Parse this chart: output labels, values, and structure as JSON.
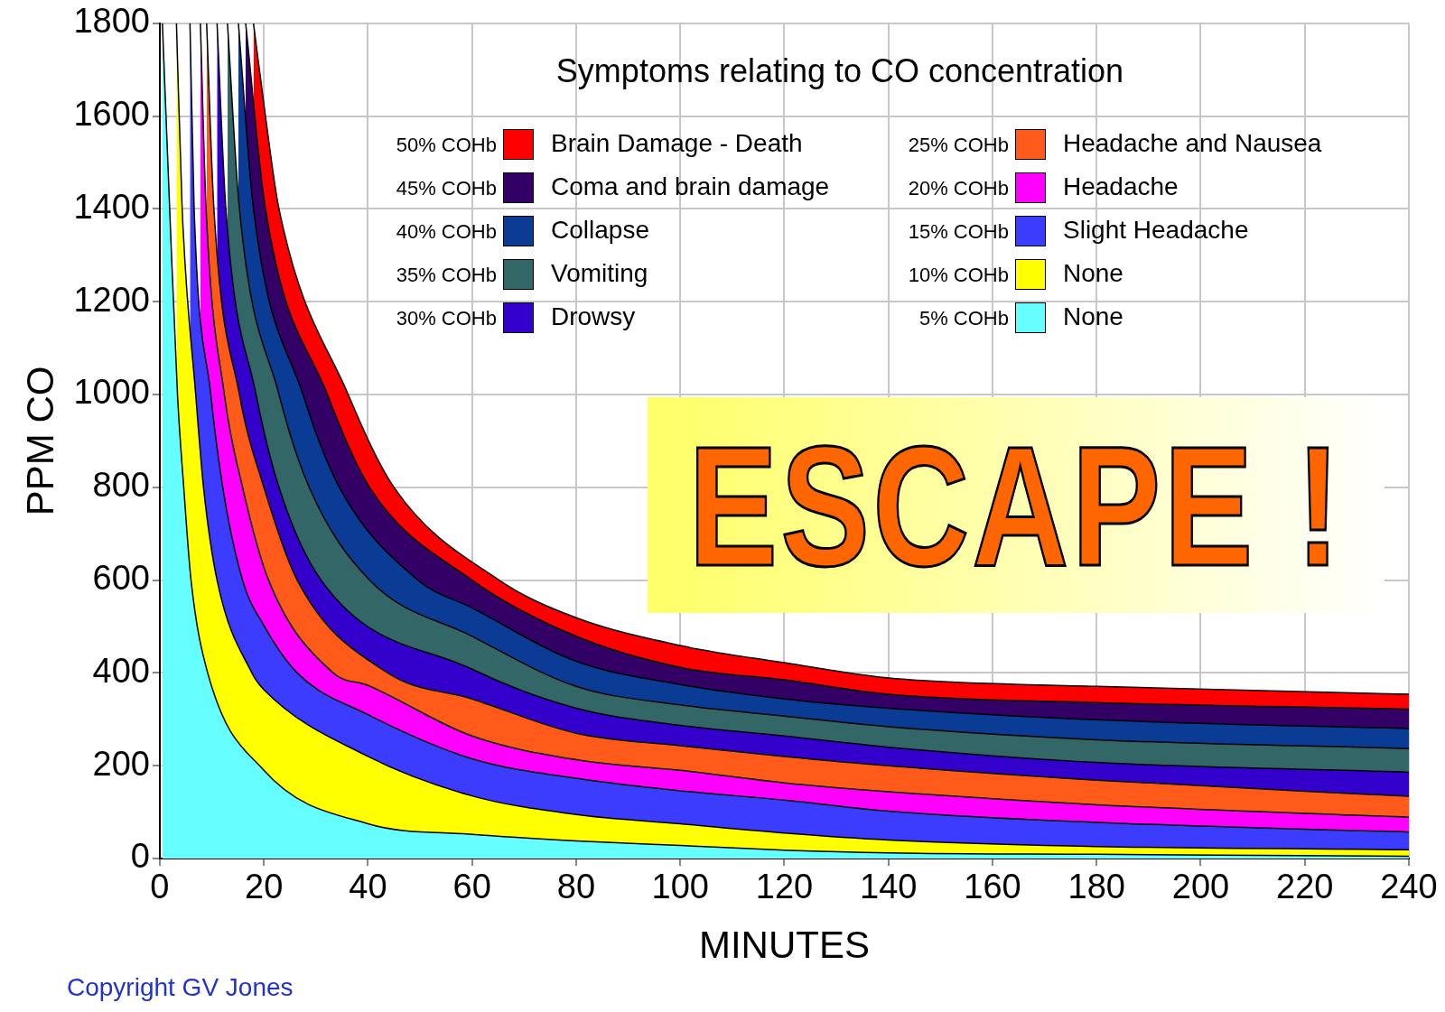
{
  "chart_data": {
    "type": "area",
    "title": "Symptoms relating to CO concentration",
    "xlabel": "MINUTES",
    "ylabel": "PPM CO",
    "xlim": [
      0,
      240
    ],
    "xticks": [
      0,
      20,
      40,
      60,
      80,
      100,
      120,
      140,
      160,
      180,
      200,
      220,
      240
    ],
    "ylim": [
      0,
      1800
    ],
    "yticks": [
      0,
      200,
      400,
      600,
      800,
      1000,
      1200,
      1400,
      1600,
      1800
    ],
    "grid": true,
    "legend": "top",
    "annotations": [
      "50% COHb",
      "45% COHb",
      "40% COHb",
      "35% COHb",
      "30% COHb",
      "25% COHb",
      "20% COHb",
      "15% COHb",
      "10% COHb",
      "5% COHb",
      "ESCAPE !",
      "Copyright GV Jones"
    ],
    "series": [
      {
        "name": "None",
        "color": "#66ffff",
        "x": [
          0.5,
          1.9,
          3.4,
          4.6,
          6.0,
          9.2,
          20,
          40,
          60,
          80,
          100,
          120,
          140,
          180,
          240
        ],
        "values": [
          1800,
          1400,
          1000,
          800,
          600,
          400,
          190,
          75,
          52,
          38,
          28,
          18,
          12,
          9,
          5
        ]
      },
      {
        "name": "None",
        "color": "#ffff00",
        "x": [
          3.2,
          4.3,
          6.9,
          8.4,
          11.0,
          17.7,
          20,
          40,
          60,
          80,
          100,
          120,
          140,
          180,
          240
        ],
        "values": [
          1800,
          1400,
          1000,
          800,
          600,
          400,
          364,
          220,
          135,
          95,
          75,
          55,
          40,
          26,
          19
        ]
      },
      {
        "name": "Slight Headache",
        "color": "#3c3cff",
        "x": [
          5.8,
          6.6,
          9.8,
          12.1,
          15.9,
          20,
          26.4,
          40,
          60,
          80,
          100,
          120,
          140,
          180,
          240
        ],
        "values": [
          1800,
          1400,
          1000,
          800,
          600,
          502,
          400,
          310,
          215,
          173,
          146,
          126,
          102,
          78,
          57
        ]
      },
      {
        "name": "Headache",
        "color": "#ff00ff",
        "x": [
          7.8,
          8.9,
          12.4,
          15.9,
          20.9,
          33.3,
          40,
          60,
          80,
          100,
          120,
          140,
          180,
          240
        ],
        "values": [
          1800,
          1400,
          1000,
          800,
          600,
          400,
          373,
          264,
          213,
          190,
          163,
          144,
          116,
          89
        ]
      },
      {
        "name": "Headache and Nausea",
        "color": "#ff5a1a",
        "x": [
          9.0,
          10.4,
          15.3,
          20.0,
          26.4,
          43.8,
          60,
          80,
          100,
          120,
          140,
          180,
          240
        ],
        "values": [
          1800,
          1400,
          1000,
          800,
          600,
          400,
          344,
          270,
          243,
          220,
          200,
          169,
          134
        ]
      },
      {
        "name": "Drowsy",
        "color": "#3300cc",
        "x": [
          11.0,
          12.7,
          18.5,
          22.9,
          31.0,
          60,
          80,
          100,
          120,
          140,
          180,
          240
        ],
        "values": [
          1800,
          1400,
          1000,
          800,
          600,
          408,
          324,
          287,
          264,
          240,
          207,
          186
        ]
      },
      {
        "name": "Vomiting",
        "color": "#336666",
        "x": [
          13.0,
          15.3,
          22.9,
          28.7,
          40.3,
          60,
          80,
          100,
          120,
          140,
          180,
          240
        ],
        "values": [
          1800,
          1400,
          1000,
          800,
          600,
          479,
          371,
          331,
          307,
          284,
          256,
          237
        ]
      },
      {
        "name": "Collapse",
        "color": "#0a3c96",
        "x": [
          15.1,
          18.0,
          27.5,
          34.5,
          49.6,
          60,
          80,
          100,
          120,
          140,
          180,
          240
        ],
        "values": [
          1800,
          1400,
          1000,
          800,
          600,
          540,
          425,
          375,
          344,
          324,
          299,
          280
        ]
      },
      {
        "name": "Coma and brain damage",
        "color": "#330066",
        "x": [
          16.5,
          20.3,
          32.2,
          40.3,
          60,
          80,
          100,
          120,
          140,
          180,
          240
        ],
        "values": [
          1800,
          1400,
          1000,
          800,
          600,
          479,
          412,
          385,
          354,
          336,
          322
        ]
      },
      {
        "name": "Brain Damage - Death",
        "color": "#ff0000",
        "x": [
          18.0,
          20.3,
          22.9,
          36.2,
          45.0,
          65.2,
          80,
          100,
          120,
          140,
          180,
          240
        ],
        "values": [
          1800,
          1600,
          1400,
          1000,
          800,
          600,
          519,
          459,
          422,
          389,
          371,
          354
        ]
      }
    ]
  }
}
